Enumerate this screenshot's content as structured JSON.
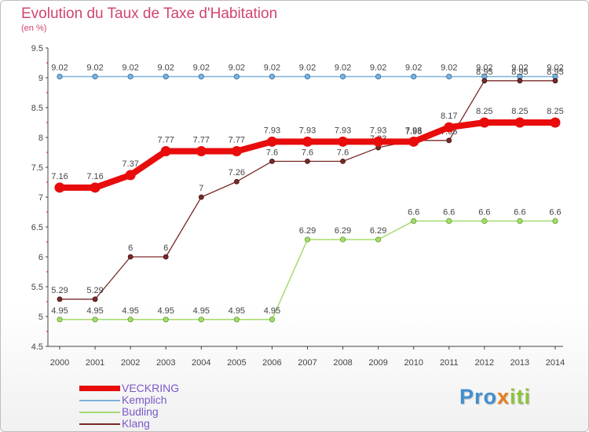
{
  "title": "Evolution du Taux de Taxe d'Habitation",
  "subtitle": "(en %)",
  "logo": "Proxiti",
  "chart_data": {
    "type": "line",
    "x": [
      2000,
      2001,
      2002,
      2003,
      2004,
      2005,
      2006,
      2007,
      2008,
      2009,
      2010,
      2011,
      2012,
      2013,
      2014
    ],
    "ylim": [
      4.5,
      9.5
    ],
    "yticks": [
      "4.5",
      "5",
      "5.5",
      "6",
      "6.5",
      "7",
      "7.5",
      "8",
      "8.5",
      "9",
      "9.5"
    ],
    "grid": false,
    "legend_position": "bottom-left",
    "series": [
      {
        "name": "VECKRING",
        "color": "#e80c0c",
        "values": [
          7.16,
          7.16,
          7.37,
          7.77,
          7.77,
          7.77,
          7.93,
          7.93,
          7.93,
          7.93,
          7.93,
          8.17,
          8.25,
          8.25,
          8.25
        ],
        "labels": [
          "7.16",
          "7.16",
          "7.37",
          "7.77",
          "7.77",
          "7.77",
          "7.93",
          "7.93",
          "7.93",
          "7.93",
          "7.93",
          "8.17",
          "8.25",
          "8.25",
          "8.25"
        ]
      },
      {
        "name": "Kemplich",
        "color": "#7eb3d9",
        "values": [
          9.02,
          9.02,
          9.02,
          9.02,
          9.02,
          9.02,
          9.02,
          9.02,
          9.02,
          9.02,
          9.02,
          9.02,
          9.02,
          9.02,
          9.02
        ],
        "labels": [
          "9.02",
          "9.02",
          "9.02",
          "9.02",
          "9.02",
          "9.02",
          "9.02",
          "9.02",
          "9.02",
          "9.02",
          "9.02",
          "9.02",
          "9.02",
          "9.02",
          "9.02"
        ]
      },
      {
        "name": "Budling",
        "color": "#a5db6e",
        "values": [
          4.95,
          4.95,
          4.95,
          4.95,
          4.95,
          4.95,
          4.95,
          6.29,
          6.29,
          6.29,
          6.6,
          6.6,
          6.6,
          6.6,
          6.6
        ],
        "labels": [
          "4.95",
          "4.95",
          "4.95",
          "4.95",
          "4.95",
          "4.95",
          "4.95",
          "6.29",
          "6.29",
          "6.29",
          "6.6",
          "6.6",
          "6.6",
          "6.6",
          "6.6"
        ]
      },
      {
        "name": "Klang",
        "color": "#7a2a2a",
        "values": [
          5.29,
          5.29,
          6,
          6,
          7,
          7.26,
          7.6,
          7.6,
          7.6,
          7.83,
          7.95,
          7.95,
          8.95,
          8.95,
          8.95
        ],
        "labels": [
          "5.29",
          "5.29",
          "6",
          "6",
          "7",
          "7.26",
          "7.6",
          "7.6",
          "7.6",
          "7.83",
          "7.95",
          "7.95",
          "8.95",
          "8.95",
          "8.95"
        ]
      }
    ]
  }
}
